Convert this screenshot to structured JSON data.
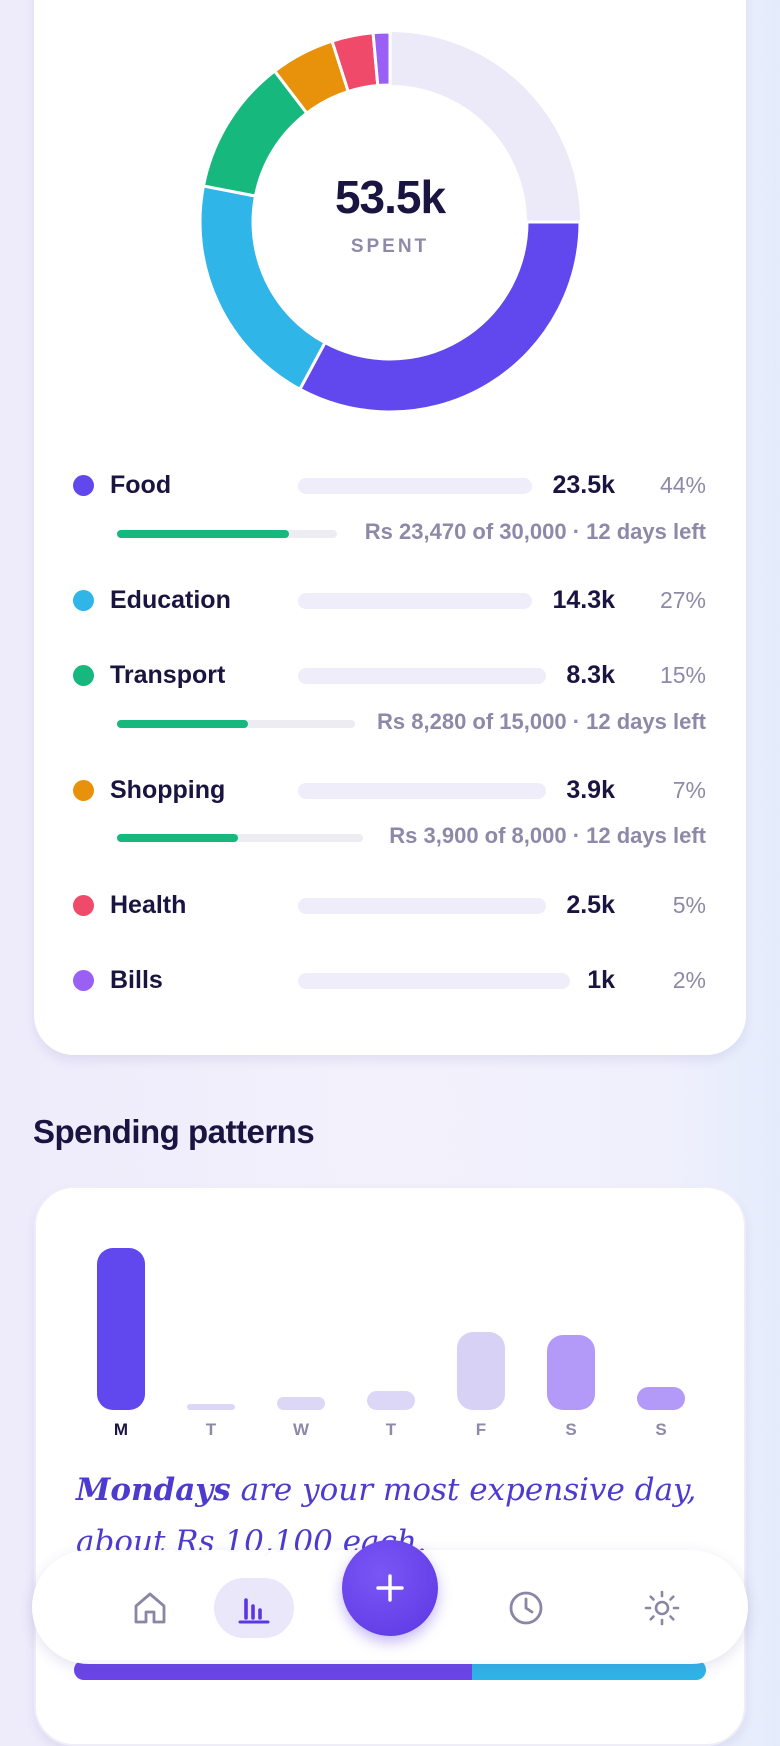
{
  "donut": {
    "center_value": "53.5k",
    "center_label": "SPENT",
    "track_color": "#ece9f8"
  },
  "categories": [
    {
      "name": "Food",
      "amount": "23.5k",
      "percent": "44%",
      "color": "#6148ee",
      "share": 0.44,
      "budget": {
        "text": "Rs 23,470 of 30,000 · 12 days left",
        "progress": 0.78
      }
    },
    {
      "name": "Education",
      "amount": "14.3k",
      "percent": "27%",
      "color": "#2fb5e8",
      "share": 0.27
    },
    {
      "name": "Transport",
      "amount": "8.3k",
      "percent": "15%",
      "color": "#16b87e",
      "share": 0.155,
      "budget": {
        "text": "Rs 8,280 of 15,000 · 12 days left",
        "progress": 0.55
      }
    },
    {
      "name": "Shopping",
      "amount": "3.9k",
      "percent": "7%",
      "color": "#e8920c",
      "share": 0.073,
      "budget": {
        "text": "Rs 3,900 of 8,000 · 12 days left",
        "progress": 0.49
      }
    },
    {
      "name": "Health",
      "amount": "2.5k",
      "percent": "5%",
      "color": "#ef4a6a",
      "share": 0.047
    },
    {
      "name": "Bills",
      "amount": "1k",
      "percent": "2%",
      "color": "#9a60f5",
      "share": 0.019
    }
  ],
  "patterns": {
    "title": "Spending patterns",
    "days": [
      {
        "label": "M",
        "level": 1.0,
        "color": "#6148ee",
        "active": true
      },
      {
        "label": "T",
        "level": 0.03,
        "color": "#ddd7f7",
        "active": false
      },
      {
        "label": "W",
        "level": 0.08,
        "color": "#ddd7f7",
        "active": false
      },
      {
        "label": "T",
        "level": 0.12,
        "color": "#ddd7f7",
        "active": false
      },
      {
        "label": "F",
        "level": 0.48,
        "color": "#d8d1f6",
        "active": false
      },
      {
        "label": "S",
        "level": 0.46,
        "color": "#b39af8",
        "active": false
      },
      {
        "label": "S",
        "level": 0.14,
        "color": "#b39af8",
        "active": false
      }
    ],
    "insight_highlight": "Mondays",
    "insight_rest": " are your most expensive day, about Rs 10,100 each."
  },
  "nav": {
    "items": [
      {
        "name": "home-icon"
      },
      {
        "name": "stats-icon",
        "active": true
      },
      {
        "name": "add-icon"
      },
      {
        "name": "history-icon"
      },
      {
        "name": "settings-icon"
      }
    ]
  }
}
